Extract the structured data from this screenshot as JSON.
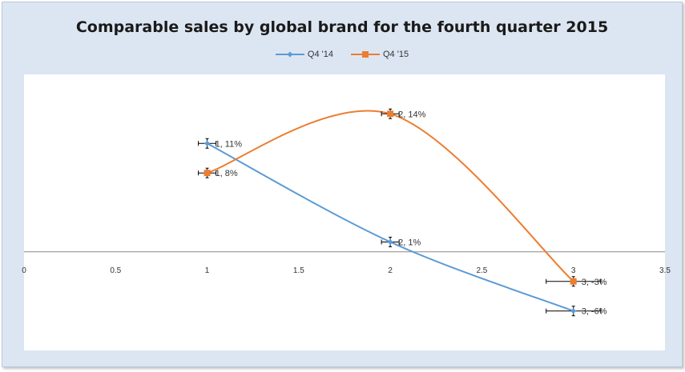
{
  "chart_data": {
    "type": "scatter",
    "title": "Comparable sales by global brand for the fourth quarter 2015",
    "xlabel": "",
    "ylabel": "",
    "xlim": [
      0,
      3.5
    ],
    "ylim": [
      -10,
      18
    ],
    "x_ticks": [
      "0",
      "0.5",
      "1",
      "1.5",
      "2",
      "2.5",
      "3",
      "3.5"
    ],
    "legend_position": "top",
    "smoothed_lines": true,
    "error_bars": true,
    "series": [
      {
        "name": "Q4 '14",
        "color": "#5b9bd5",
        "marker": "diamond",
        "points": [
          {
            "x": 1,
            "y": 11,
            "label": "1, 11%"
          },
          {
            "x": 2,
            "y": 1,
            "label": "2, 1%"
          },
          {
            "x": 3,
            "y": -6,
            "label": "3, -6%"
          }
        ]
      },
      {
        "name": "Q4 '15",
        "color": "#ed7d31",
        "marker": "square",
        "points": [
          {
            "x": 1,
            "y": 8,
            "label": "1, 8%"
          },
          {
            "x": 2,
            "y": 14,
            "label": "2, 14%"
          },
          {
            "x": 3,
            "y": -3,
            "label": "3, -3%"
          }
        ]
      }
    ]
  }
}
